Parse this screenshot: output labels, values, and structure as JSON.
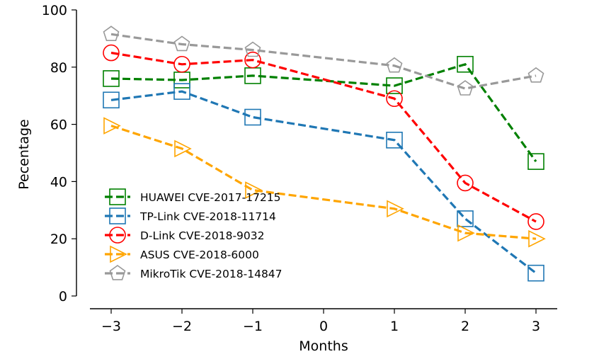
{
  "chart_data": {
    "type": "line",
    "title": "",
    "xlabel": "Months",
    "ylabel": "Pecentage",
    "x": [
      -3,
      -2,
      -1,
      1,
      2,
      3
    ],
    "x_ticks": [
      -3,
      -2,
      -1,
      0,
      1,
      2,
      3
    ],
    "x_tick_labels": [
      "−3",
      "−2",
      "−1",
      "0",
      "1",
      "2",
      "3"
    ],
    "y_ticks": [
      0,
      20,
      40,
      60,
      80,
      100
    ],
    "y_tick_labels": [
      "0",
      "20",
      "40",
      "60",
      "80",
      "100"
    ],
    "xlim": [
      -3.3,
      3.3
    ],
    "ylim": [
      0,
      100
    ],
    "grid": false,
    "legend_position": "lower-left",
    "series": [
      {
        "name": "HUAWEI CVE-2017-17215",
        "color": "#008000",
        "marker": "square",
        "values": [
          76,
          75.5,
          77,
          73.5,
          81,
          47
        ]
      },
      {
        "name": "TP-Link CVE-2018-11714",
        "color": "#1f77b4",
        "marker": "square",
        "values": [
          68.5,
          71.5,
          62.5,
          54.5,
          27,
          8
        ]
      },
      {
        "name": "D-Link CVE-2018-9032",
        "color": "#ff0000",
        "marker": "circle",
        "values": [
          85,
          81,
          82.5,
          69,
          39.5,
          26
        ]
      },
      {
        "name": "ASUS CVE-2018-6000",
        "color": "#ffa500",
        "marker": "triangle-right",
        "values": [
          59.5,
          51.5,
          37,
          30.5,
          22,
          20
        ]
      },
      {
        "name": "MikroTik CVE-2018-14847",
        "color": "#999999",
        "marker": "pentagon",
        "values": [
          91.5,
          88,
          86,
          80.5,
          72.5,
          77
        ]
      }
    ]
  }
}
